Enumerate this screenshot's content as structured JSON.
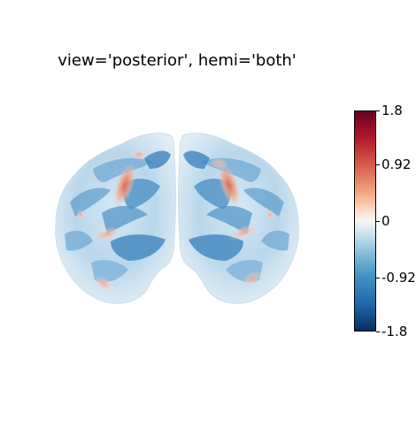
{
  "figure": {
    "title": "view='posterior', hemi='both'"
  },
  "colorbar": {
    "colormap": "RdBu_r",
    "vmin": -1.8,
    "vmax": 1.8,
    "ticks": [
      {
        "value": 1.8,
        "label": "1.8"
      },
      {
        "value": 0.92,
        "label": "0.92"
      },
      {
        "value": 0,
        "label": "0"
      },
      {
        "value": -0.92,
        "label": "-0.92"
      },
      {
        "value": -1.8,
        "label": "-1.8"
      }
    ]
  }
}
